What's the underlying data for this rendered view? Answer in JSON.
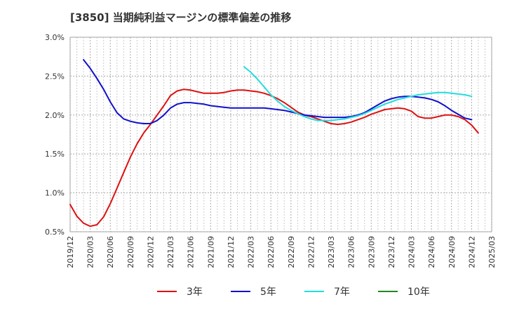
{
  "chart_data": {
    "type": "line",
    "title": "[3850]  当期純利益マージンの標準偏差の推移",
    "xlabel": "",
    "ylabel": "",
    "ylim": [
      0.5,
      3.0
    ],
    "y_ticks": [
      "0.5%",
      "1.0%",
      "1.5%",
      "2.0%",
      "2.5%",
      "3.0%"
    ],
    "y_tick_values": [
      0.5,
      1.0,
      1.5,
      2.0,
      2.5,
      3.0
    ],
    "x_ticks": [
      "2019/12",
      "2020/03",
      "2020/06",
      "2020/09",
      "2020/12",
      "2021/03",
      "2021/06",
      "2021/09",
      "2021/12",
      "2022/03",
      "2022/06",
      "2022/09",
      "2022/12",
      "2023/03",
      "2023/06",
      "2023/09",
      "2023/12",
      "2024/03",
      "2024/06",
      "2024/09",
      "2024/12",
      "2025/03"
    ],
    "grid": true,
    "legend_position": "bottom",
    "series": [
      {
        "name": "3年",
        "color": "#dd1111",
        "points": [
          [
            "2019/12",
            0.85
          ],
          [
            "2020/01",
            0.7
          ],
          [
            "2020/02",
            0.61
          ],
          [
            "2020/03",
            0.57
          ],
          [
            "2020/04",
            0.59
          ],
          [
            "2020/05",
            0.69
          ],
          [
            "2020/06",
            0.86
          ],
          [
            "2020/07",
            1.06
          ],
          [
            "2020/08",
            1.26
          ],
          [
            "2020/09",
            1.46
          ],
          [
            "2020/10",
            1.63
          ],
          [
            "2020/11",
            1.77
          ],
          [
            "2020/12",
            1.88
          ],
          [
            "2021/01",
            2.0
          ],
          [
            "2021/02",
            2.12
          ],
          [
            "2021/03",
            2.25
          ],
          [
            "2021/04",
            2.31
          ],
          [
            "2021/05",
            2.33
          ],
          [
            "2021/06",
            2.32
          ],
          [
            "2021/07",
            2.3
          ],
          [
            "2021/08",
            2.28
          ],
          [
            "2021/09",
            2.28
          ],
          [
            "2021/10",
            2.28
          ],
          [
            "2021/11",
            2.29
          ],
          [
            "2021/12",
            2.31
          ],
          [
            "2022/01",
            2.32
          ],
          [
            "2022/02",
            2.32
          ],
          [
            "2022/03",
            2.31
          ],
          [
            "2022/04",
            2.3
          ],
          [
            "2022/05",
            2.28
          ],
          [
            "2022/06",
            2.25
          ],
          [
            "2022/07",
            2.21
          ],
          [
            "2022/08",
            2.16
          ],
          [
            "2022/09",
            2.1
          ],
          [
            "2022/10",
            2.04
          ],
          [
            "2022/11",
            2.0
          ],
          [
            "2022/12",
            1.98
          ],
          [
            "2023/01",
            1.95
          ],
          [
            "2023/02",
            1.92
          ],
          [
            "2023/03",
            1.89
          ],
          [
            "2023/04",
            1.88
          ],
          [
            "2023/05",
            1.89
          ],
          [
            "2023/06",
            1.91
          ],
          [
            "2023/07",
            1.94
          ],
          [
            "2023/08",
            1.97
          ],
          [
            "2023/09",
            2.01
          ],
          [
            "2023/10",
            2.04
          ],
          [
            "2023/11",
            2.07
          ],
          [
            "2023/12",
            2.08
          ],
          [
            "2024/01",
            2.09
          ],
          [
            "2024/02",
            2.08
          ],
          [
            "2024/03",
            2.05
          ],
          [
            "2024/04",
            1.98
          ],
          [
            "2024/05",
            1.96
          ],
          [
            "2024/06",
            1.96
          ],
          [
            "2024/07",
            1.98
          ],
          [
            "2024/08",
            2.0
          ],
          [
            "2024/09",
            2.0
          ],
          [
            "2024/10",
            1.98
          ],
          [
            "2024/11",
            1.94
          ],
          [
            "2024/12",
            1.87
          ],
          [
            "2025/01",
            1.77
          ]
        ]
      },
      {
        "name": "5年",
        "color": "#1111cc",
        "points": [
          [
            "2020/02",
            2.71
          ],
          [
            "2020/03",
            2.6
          ],
          [
            "2020/04",
            2.47
          ],
          [
            "2020/05",
            2.33
          ],
          [
            "2020/06",
            2.17
          ],
          [
            "2020/07",
            2.03
          ],
          [
            "2020/08",
            1.95
          ],
          [
            "2020/09",
            1.92
          ],
          [
            "2020/10",
            1.9
          ],
          [
            "2020/11",
            1.89
          ],
          [
            "2020/12",
            1.89
          ],
          [
            "2021/01",
            1.93
          ],
          [
            "2021/02",
            2.0
          ],
          [
            "2021/03",
            2.09
          ],
          [
            "2021/04",
            2.14
          ],
          [
            "2021/05",
            2.16
          ],
          [
            "2021/06",
            2.16
          ],
          [
            "2021/07",
            2.15
          ],
          [
            "2021/08",
            2.14
          ],
          [
            "2021/09",
            2.12
          ],
          [
            "2021/10",
            2.11
          ],
          [
            "2021/11",
            2.1
          ],
          [
            "2021/12",
            2.09
          ],
          [
            "2022/01",
            2.09
          ],
          [
            "2022/02",
            2.09
          ],
          [
            "2022/03",
            2.09
          ],
          [
            "2022/04",
            2.09
          ],
          [
            "2022/05",
            2.09
          ],
          [
            "2022/06",
            2.08
          ],
          [
            "2022/07",
            2.07
          ],
          [
            "2022/08",
            2.06
          ],
          [
            "2022/09",
            2.04
          ],
          [
            "2022/10",
            2.02
          ],
          [
            "2022/11",
            2.0
          ],
          [
            "2022/12",
            1.99
          ],
          [
            "2023/01",
            1.98
          ],
          [
            "2023/02",
            1.97
          ],
          [
            "2023/03",
            1.97
          ],
          [
            "2023/04",
            1.97
          ],
          [
            "2023/05",
            1.97
          ],
          [
            "2023/06",
            1.98
          ],
          [
            "2023/07",
            2.0
          ],
          [
            "2023/08",
            2.03
          ],
          [
            "2023/09",
            2.08
          ],
          [
            "2023/10",
            2.13
          ],
          [
            "2023/11",
            2.18
          ],
          [
            "2023/12",
            2.21
          ],
          [
            "2024/01",
            2.23
          ],
          [
            "2024/02",
            2.24
          ],
          [
            "2024/03",
            2.24
          ],
          [
            "2024/04",
            2.23
          ],
          [
            "2024/05",
            2.22
          ],
          [
            "2024/06",
            2.2
          ],
          [
            "2024/07",
            2.17
          ],
          [
            "2024/08",
            2.12
          ],
          [
            "2024/09",
            2.06
          ],
          [
            "2024/10",
            2.01
          ],
          [
            "2024/11",
            1.96
          ],
          [
            "2024/12",
            1.94
          ]
        ]
      },
      {
        "name": "7年",
        "color": "#22dddd",
        "points": [
          [
            "2022/02",
            2.62
          ],
          [
            "2022/03",
            2.55
          ],
          [
            "2022/04",
            2.46
          ],
          [
            "2022/05",
            2.36
          ],
          [
            "2022/06",
            2.26
          ],
          [
            "2022/07",
            2.18
          ],
          [
            "2022/08",
            2.11
          ],
          [
            "2022/09",
            2.06
          ],
          [
            "2022/10",
            2.02
          ],
          [
            "2022/11",
            1.98
          ],
          [
            "2022/12",
            1.95
          ],
          [
            "2023/01",
            1.93
          ],
          [
            "2023/02",
            1.93
          ],
          [
            "2023/03",
            1.93
          ],
          [
            "2023/04",
            1.94
          ],
          [
            "2023/05",
            1.95
          ],
          [
            "2023/06",
            1.97
          ],
          [
            "2023/07",
            1.99
          ],
          [
            "2023/08",
            2.02
          ],
          [
            "2023/09",
            2.06
          ],
          [
            "2023/10",
            2.1
          ],
          [
            "2023/11",
            2.14
          ],
          [
            "2023/12",
            2.17
          ],
          [
            "2024/01",
            2.2
          ],
          [
            "2024/02",
            2.22
          ],
          [
            "2024/03",
            2.24
          ],
          [
            "2024/04",
            2.26
          ],
          [
            "2024/05",
            2.27
          ],
          [
            "2024/06",
            2.28
          ],
          [
            "2024/07",
            2.29
          ],
          [
            "2024/08",
            2.29
          ],
          [
            "2024/09",
            2.28
          ],
          [
            "2024/10",
            2.27
          ],
          [
            "2024/11",
            2.26
          ],
          [
            "2024/12",
            2.24
          ]
        ]
      },
      {
        "name": "10年",
        "color": "#228822",
        "points": []
      }
    ]
  }
}
